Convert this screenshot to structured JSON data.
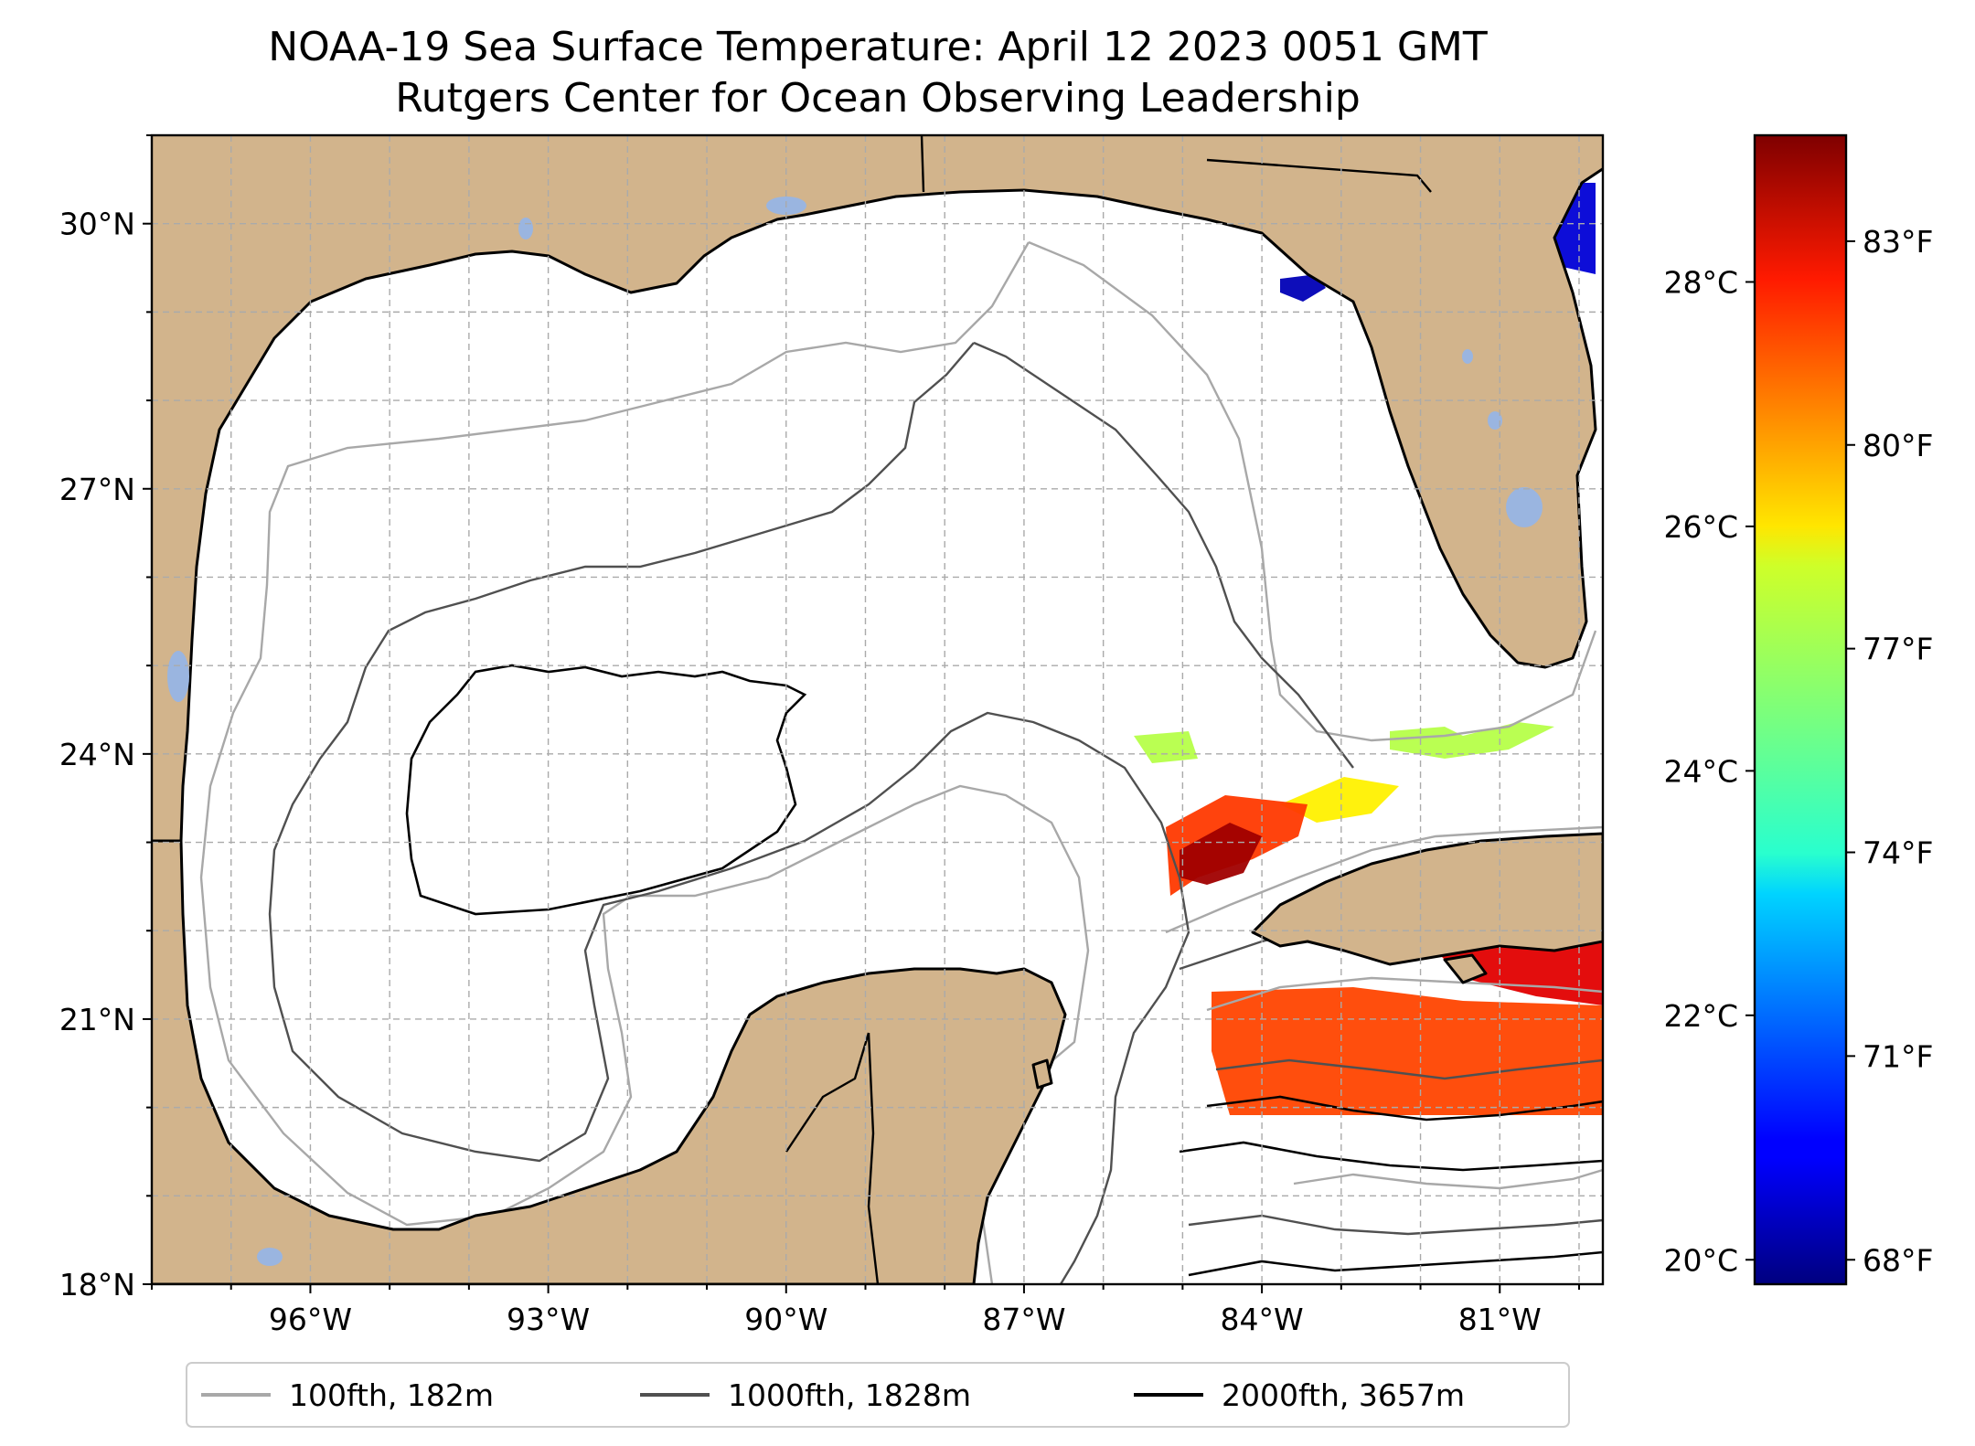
{
  "title": {
    "line1": "NOAA-19 Sea Surface Temperature: April 12 2023 0051 GMT",
    "line2": "Rutgers Center for Ocean Observing Leadership"
  },
  "map": {
    "lon_range": [
      -98.0,
      -79.7
    ],
    "lat_range": [
      18.0,
      31.0
    ],
    "lat_ticks": [
      {
        "value": 18,
        "label": "18°N"
      },
      {
        "value": 21,
        "label": "21°N"
      },
      {
        "value": 24,
        "label": "24°N"
      },
      {
        "value": 27,
        "label": "27°N"
      },
      {
        "value": 30,
        "label": "30°N"
      }
    ],
    "lon_ticks": [
      {
        "value": -96,
        "label": "96°W"
      },
      {
        "value": -93,
        "label": "93°W"
      },
      {
        "value": -90,
        "label": "90°W"
      },
      {
        "value": -87,
        "label": "87°W"
      },
      {
        "value": -84,
        "label": "84°W"
      },
      {
        "value": -81,
        "label": "81°W"
      }
    ],
    "gridlines": true,
    "land_color": "#d2b48c",
    "water_body_color": "#9ab5e0"
  },
  "colorbar": {
    "colormap": "jet",
    "range_celsius": [
      19.8,
      29.2
    ],
    "celsius_ticks": [
      {
        "value": 20,
        "label": "20°C"
      },
      {
        "value": 22,
        "label": "22°C"
      },
      {
        "value": 24,
        "label": "24°C"
      },
      {
        "value": 26,
        "label": "26°C"
      },
      {
        "value": 28,
        "label": "28°C"
      }
    ],
    "fahrenheit_ticks": [
      {
        "value": 68,
        "label": "68°F"
      },
      {
        "value": 71,
        "label": "71°F"
      },
      {
        "value": 74,
        "label": "74°F"
      },
      {
        "value": 77,
        "label": "77°F"
      },
      {
        "value": 80,
        "label": "80°F"
      },
      {
        "value": 83,
        "label": "83°F"
      }
    ]
  },
  "legend": {
    "placement": "bottom-center",
    "entries": [
      {
        "label": "100fth, 182m",
        "color": "#a8a8a8"
      },
      {
        "label": "1000fth, 1828m",
        "color": "#505050"
      },
      {
        "label": "2000fth, 3657m",
        "color": "#000000"
      }
    ]
  },
  "sst_patches": [
    {
      "region": "west-florida-shelf-north",
      "celsius": 20.3
    },
    {
      "region": "florida-atlantic",
      "celsius": 20.6
    },
    {
      "region": "florida-keys",
      "celsius": 25.0
    },
    {
      "region": "loop-current-north",
      "celsius": 25.8
    },
    {
      "region": "yucatan-strait-north",
      "celsius": 27.5
    },
    {
      "region": "cuba-north-hot",
      "celsius": 28.9
    },
    {
      "region": "cuba-south",
      "celsius": 28.3
    },
    {
      "region": "cayman-band",
      "celsius": 27.4
    }
  ]
}
